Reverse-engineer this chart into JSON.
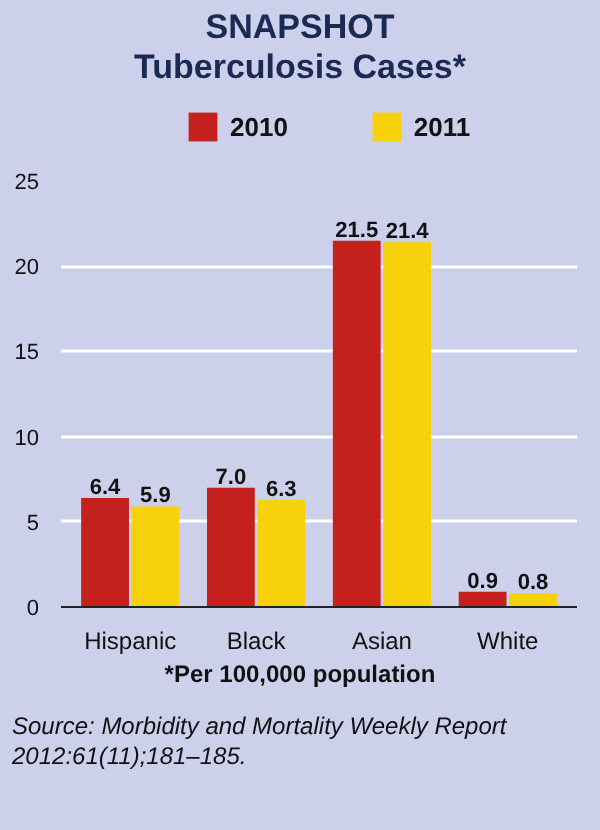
{
  "chart_data": {
    "type": "bar",
    "title": "SNAPSHOT",
    "subtitle": "Tuberculosis Cases*",
    "categories": [
      "Hispanic",
      "Black",
      "Asian",
      "White"
    ],
    "series": [
      {
        "name": "2010",
        "color": "#c4201e",
        "values": [
          6.4,
          7.0,
          21.5,
          0.9
        ],
        "value_labels": [
          "6.4",
          "7.0",
          "21.5",
          "0.9"
        ]
      },
      {
        "name": "2011",
        "color": "#f7d10a",
        "values": [
          5.9,
          6.3,
          21.4,
          0.8
        ],
        "value_labels": [
          "5.9",
          "6.3",
          "21.4",
          "0.8"
        ]
      }
    ],
    "ylim": [
      0,
      25
    ],
    "yticks": [
      0,
      5,
      10,
      15,
      20,
      25
    ],
    "grid": "y",
    "legend": "top",
    "annotations": [
      "*Per 100,000 population",
      "Source: Morbidity and Mortality Weekly Report 2012:61(11);181–185."
    ]
  }
}
